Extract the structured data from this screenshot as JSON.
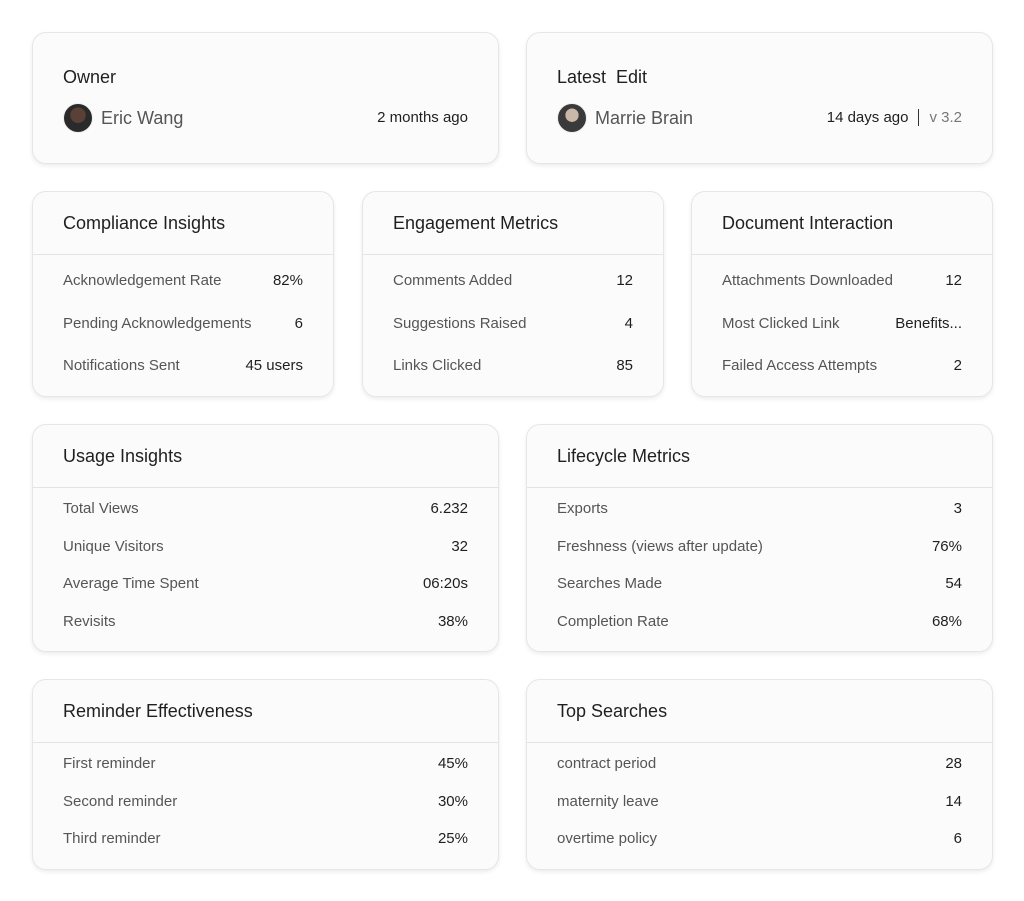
{
  "owner": {
    "title": "Owner",
    "name": "Eric Wang",
    "time": "2 months ago"
  },
  "latest_edit": {
    "title": "Latest  Edit",
    "name": "Marrie Brain",
    "time": "14 days ago",
    "version": "v 3.2"
  },
  "cards": [
    {
      "title": "Compliance Insights",
      "rows": [
        {
          "label": "Acknowledgement Rate",
          "value": "82%"
        },
        {
          "label": "Pending Acknowledgements",
          "value": "6"
        },
        {
          "label": "Notifications Sent",
          "value": "45 users"
        }
      ]
    },
    {
      "title": "Engagement Metrics",
      "rows": [
        {
          "label": "Comments Added",
          "value": "12"
        },
        {
          "label": "Suggestions Raised",
          "value": "4"
        },
        {
          "label": "Links Clicked",
          "value": "85"
        }
      ]
    },
    {
      "title": "Document Interaction",
      "rows": [
        {
          "label": "Attachments Downloaded",
          "value": "12"
        },
        {
          "label": "Most Clicked Link",
          "value": "Benefits..."
        },
        {
          "label": "Failed Access Attempts",
          "value": "2"
        }
      ]
    },
    {
      "title": "Usage Insights",
      "rows": [
        {
          "label": "Total Views",
          "value": "6.232"
        },
        {
          "label": "Unique Visitors",
          "value": "32"
        },
        {
          "label": "Average Time Spent",
          "value": "06:20s"
        },
        {
          "label": "Revisits",
          "value": "38%"
        }
      ]
    },
    {
      "title": "Lifecycle Metrics",
      "rows": [
        {
          "label": "Exports",
          "value": "3"
        },
        {
          "label": "Freshness (views after update)",
          "value": "76%"
        },
        {
          "label": "Searches Made",
          "value": "54"
        },
        {
          "label": "Completion Rate",
          "value": "68%"
        }
      ]
    },
    {
      "title": "Reminder Effectiveness",
      "rows": [
        {
          "label": "First reminder",
          "value": "45%"
        },
        {
          "label": "Second reminder",
          "value": "30%"
        },
        {
          "label": "Third reminder",
          "value": "25%"
        }
      ]
    },
    {
      "title": "Top Searches",
      "rows": [
        {
          "label": "contract period",
          "value": "28"
        },
        {
          "label": "maternity leave",
          "value": "14"
        },
        {
          "label": "overtime policy",
          "value": "6"
        }
      ]
    }
  ]
}
